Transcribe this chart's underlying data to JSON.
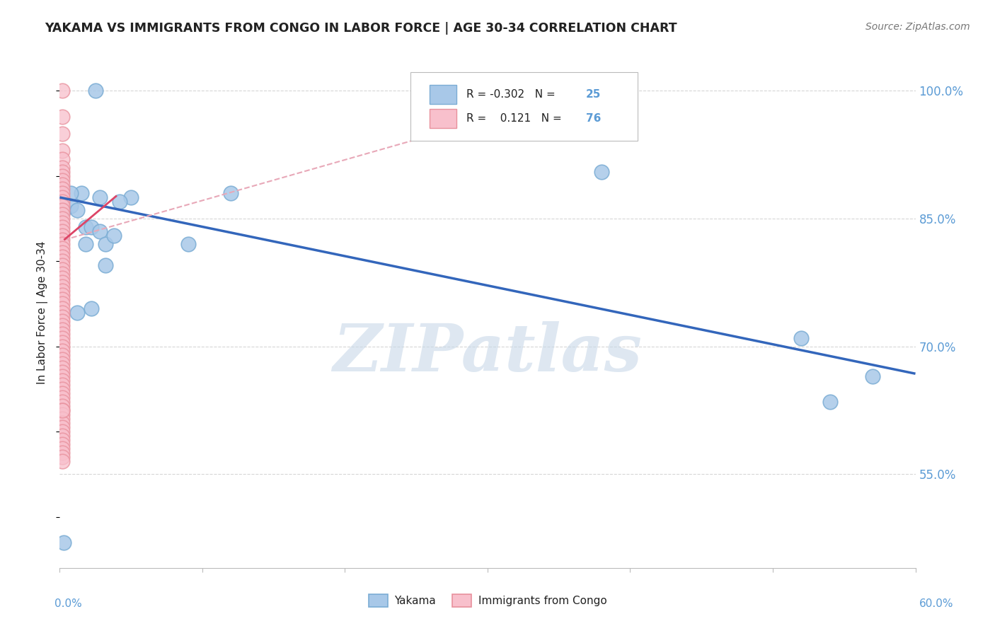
{
  "title": "YAKAMA VS IMMIGRANTS FROM CONGO IN LABOR FORCE | AGE 30-34 CORRELATION CHART",
  "source": "Source: ZipAtlas.com",
  "ylabel": "In Labor Force | Age 30-34",
  "legend_blue_R": "-0.302",
  "legend_blue_N": "25",
  "legend_pink_R": "0.121",
  "legend_pink_N": "76",
  "xlim": [
    0.0,
    0.6
  ],
  "ylim": [
    0.44,
    1.04
  ],
  "yticks": [
    1.0,
    0.85,
    0.7,
    0.55
  ],
  "ytick_labels": [
    "100.0%",
    "85.0%",
    "70.0%",
    "55.0%"
  ],
  "blue_scatter_x": [
    0.003,
    0.003,
    0.008,
    0.012,
    0.018,
    0.022,
    0.028,
    0.032,
    0.038,
    0.05,
    0.09,
    0.12,
    0.38,
    0.52,
    0.54,
    0.57,
    0.012,
    0.022,
    0.032,
    0.025,
    0.015,
    0.028,
    0.042,
    0.018,
    0.008
  ],
  "blue_scatter_y": [
    0.47,
    0.86,
    0.865,
    0.86,
    0.84,
    0.84,
    0.835,
    0.82,
    0.83,
    0.875,
    0.82,
    0.88,
    0.905,
    0.71,
    0.635,
    0.665,
    0.74,
    0.745,
    0.795,
    1.0,
    0.88,
    0.875,
    0.87,
    0.82,
    0.88
  ],
  "pink_scatter_x": [
    0.002,
    0.002,
    0.002,
    0.002,
    0.002,
    0.002,
    0.002,
    0.002,
    0.002,
    0.002,
    0.002,
    0.002,
    0.002,
    0.002,
    0.002,
    0.002,
    0.002,
    0.002,
    0.002,
    0.002,
    0.002,
    0.002,
    0.002,
    0.002,
    0.002,
    0.002,
    0.002,
    0.002,
    0.002,
    0.002,
    0.002,
    0.002,
    0.002,
    0.002,
    0.002,
    0.002,
    0.002,
    0.002,
    0.002,
    0.002,
    0.002,
    0.002,
    0.002,
    0.002,
    0.002,
    0.002,
    0.002,
    0.002,
    0.002,
    0.002,
    0.002,
    0.002,
    0.002,
    0.002,
    0.002,
    0.002,
    0.002,
    0.002,
    0.002,
    0.002,
    0.002,
    0.002,
    0.002,
    0.002,
    0.002,
    0.002,
    0.002,
    0.002,
    0.002,
    0.002,
    0.002,
    0.002,
    0.002,
    0.002,
    0.002,
    0.002
  ],
  "pink_scatter_y": [
    1.0,
    0.97,
    0.95,
    0.93,
    0.92,
    0.91,
    0.905,
    0.9,
    0.895,
    0.89,
    0.885,
    0.88,
    0.875,
    0.87,
    0.865,
    0.86,
    0.855,
    0.85,
    0.845,
    0.84,
    0.835,
    0.83,
    0.825,
    0.82,
    0.815,
    0.81,
    0.805,
    0.8,
    0.795,
    0.79,
    0.785,
    0.78,
    0.775,
    0.77,
    0.765,
    0.76,
    0.755,
    0.75,
    0.745,
    0.74,
    0.735,
    0.73,
    0.725,
    0.72,
    0.715,
    0.71,
    0.705,
    0.7,
    0.695,
    0.69,
    0.685,
    0.68,
    0.675,
    0.67,
    0.665,
    0.66,
    0.655,
    0.65,
    0.645,
    0.64,
    0.635,
    0.63,
    0.625,
    0.62,
    0.615,
    0.61,
    0.605,
    0.6,
    0.595,
    0.59,
    0.585,
    0.58,
    0.575,
    0.57,
    0.565,
    0.625
  ],
  "blue_line_x": [
    0.0,
    0.6
  ],
  "blue_line_y": [
    0.875,
    0.668
  ],
  "pink_solid_line_x": [
    0.003,
    0.04
  ],
  "pink_solid_line_y": [
    0.825,
    0.877
  ],
  "pink_dashed_line_x": [
    0.003,
    0.38
  ],
  "pink_dashed_line_y": [
    0.825,
    1.005
  ],
  "blue_color": "#A8C8E8",
  "blue_edge_color": "#7BADD4",
  "blue_line_color": "#3366BB",
  "pink_color": "#F8C0CC",
  "pink_edge_color": "#E8909C",
  "pink_line_color": "#DD4466",
  "pink_dashed_color": "#E8A8B8",
  "background_color": "#FFFFFF",
  "grid_color": "#CCCCCC",
  "title_color": "#222222",
  "axis_label_color": "#5B9BD5",
  "watermark_color": "#C8D8E8",
  "watermark": "ZIPatlas"
}
